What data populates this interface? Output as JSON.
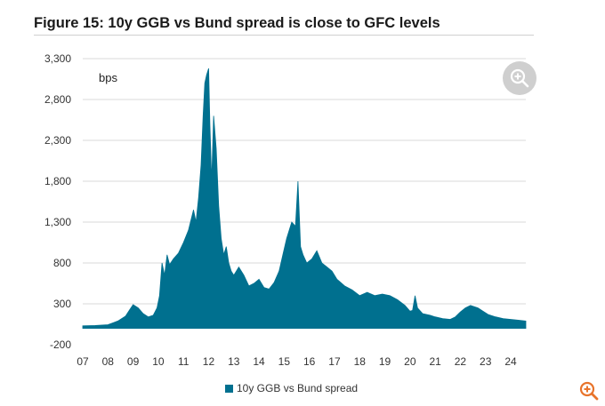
{
  "title": "Figure 15: 10y GGB vs Bund spread is close to GFC levels",
  "colors": {
    "series": "#00708f",
    "grid": "#d9d9d9",
    "zoom_bg": "#cfcfcf",
    "expand_icon": "#e8742b"
  },
  "icons": {
    "zoom": "zoom-in-icon",
    "expand": "expand-icon"
  },
  "chart_data": {
    "type": "area",
    "ylabel": "bps",
    "ylim": [
      -200,
      3300
    ],
    "yticks": [
      -200,
      300,
      800,
      1300,
      1800,
      2300,
      2800,
      3300
    ],
    "ytick_labels": [
      "-200",
      "300",
      "800",
      "1,300",
      "1,800",
      "2,300",
      "2,800",
      "3,300"
    ],
    "xlim": [
      2007.0,
      2024.6
    ],
    "xticks": [
      2007,
      2008,
      2009,
      2010,
      2011,
      2012,
      2013,
      2014,
      2015,
      2016,
      2017,
      2018,
      2019,
      2020,
      2021,
      2022,
      2023,
      2024
    ],
    "xtick_labels": [
      "07",
      "08",
      "09",
      "10",
      "11",
      "12",
      "13",
      "14",
      "15",
      "16",
      "17",
      "18",
      "19",
      "20",
      "21",
      "22",
      "23",
      "24"
    ],
    "grid": true,
    "legend_position": "bottom-center",
    "series": [
      {
        "name": "10y GGB vs Bund spread",
        "x": [
          2007.0,
          2007.5,
          2008.0,
          2008.4,
          2008.7,
          2008.85,
          2009.0,
          2009.2,
          2009.4,
          2009.6,
          2009.8,
          2009.95,
          2010.05,
          2010.15,
          2010.25,
          2010.35,
          2010.45,
          2010.6,
          2010.8,
          2011.0,
          2011.2,
          2011.4,
          2011.5,
          2011.6,
          2011.7,
          2011.78,
          2011.85,
          2011.92,
          2012.0,
          2012.05,
          2012.12,
          2012.2,
          2012.3,
          2012.4,
          2012.5,
          2012.6,
          2012.7,
          2012.8,
          2012.9,
          2013.0,
          2013.2,
          2013.4,
          2013.6,
          2013.8,
          2014.0,
          2014.2,
          2014.4,
          2014.6,
          2014.8,
          2014.95,
          2015.1,
          2015.3,
          2015.45,
          2015.55,
          2015.65,
          2015.75,
          2015.9,
          2016.1,
          2016.3,
          2016.5,
          2016.7,
          2016.9,
          2017.1,
          2017.4,
          2017.7,
          2018.0,
          2018.3,
          2018.6,
          2018.9,
          2019.2,
          2019.5,
          2019.8,
          2020.0,
          2020.1,
          2020.2,
          2020.3,
          2020.5,
          2020.8,
          2021.0,
          2021.3,
          2021.6,
          2021.8,
          2022.0,
          2022.2,
          2022.4,
          2022.7,
          2022.9,
          2023.1,
          2023.4,
          2023.7,
          2024.0,
          2024.3,
          2024.6
        ],
        "values": [
          30,
          35,
          45,
          90,
          150,
          220,
          290,
          250,
          180,
          140,
          160,
          250,
          400,
          800,
          650,
          900,
          780,
          850,
          920,
          1050,
          1200,
          1450,
          1300,
          1600,
          2000,
          2600,
          3000,
          3100,
          3180,
          2500,
          1800,
          2600,
          2200,
          1500,
          1100,
          900,
          1000,
          800,
          700,
          650,
          750,
          650,
          520,
          550,
          600,
          500,
          480,
          560,
          700,
          900,
          1100,
          1300,
          1250,
          1800,
          1000,
          900,
          800,
          850,
          950,
          800,
          750,
          700,
          600,
          520,
          470,
          400,
          440,
          400,
          420,
          400,
          350,
          280,
          210,
          220,
          400,
          250,
          180,
          160,
          140,
          120,
          110,
          140,
          200,
          250,
          280,
          250,
          210,
          170,
          140,
          120,
          110,
          100,
          90
        ]
      }
    ]
  }
}
